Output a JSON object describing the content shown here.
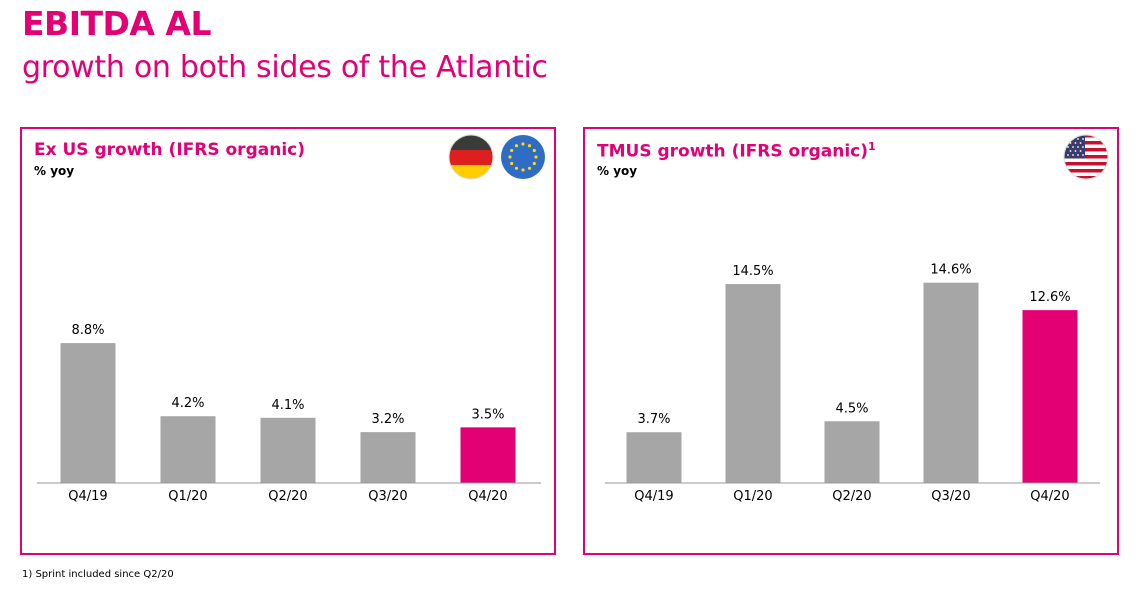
{
  "header": {
    "title": "EBITDA AL",
    "subtitle": "growth on both sides of the Atlantic"
  },
  "colors": {
    "accent": "#e20074",
    "bar_default": "#a6a6a6",
    "bar_highlight": "#e20074"
  },
  "panels": {
    "left": {
      "title": "Ex US growth (IFRS organic)",
      "unit": "% yoy",
      "icons": [
        "germany-flag-icon",
        "eu-flag-icon"
      ]
    },
    "right": {
      "title": "TMUS growth (IFRS organic)",
      "footnote_marker": "1",
      "unit": "% yoy",
      "icons": [
        "usa-flag-icon"
      ]
    }
  },
  "chart_data": [
    {
      "type": "bar",
      "title": "Ex US growth (IFRS organic)",
      "ylabel": "% yoy",
      "categories": [
        "Q4/19",
        "Q1/20",
        "Q2/20",
        "Q3/20",
        "Q4/20"
      ],
      "values": [
        8.8,
        4.2,
        4.1,
        3.2,
        3.5
      ],
      "labels": [
        "8.8%",
        "4.2%",
        "4.1%",
        "3.2%",
        "3.5%"
      ],
      "highlight_index": 4,
      "ylim": [
        0,
        15
      ]
    },
    {
      "type": "bar",
      "title": "TMUS growth (IFRS organic)",
      "ylabel": "% yoy",
      "categories": [
        "Q4/19",
        "Q1/20",
        "Q2/20",
        "Q3/20",
        "Q4/20"
      ],
      "values": [
        3.7,
        14.5,
        4.5,
        14.6,
        12.6
      ],
      "labels": [
        "3.7%",
        "14.5%",
        "4.5%",
        "14.6%",
        "12.6%"
      ],
      "highlight_index": 4,
      "ylim": [
        0,
        15
      ]
    }
  ],
  "footnote": "1) Sprint included since Q2/20"
}
